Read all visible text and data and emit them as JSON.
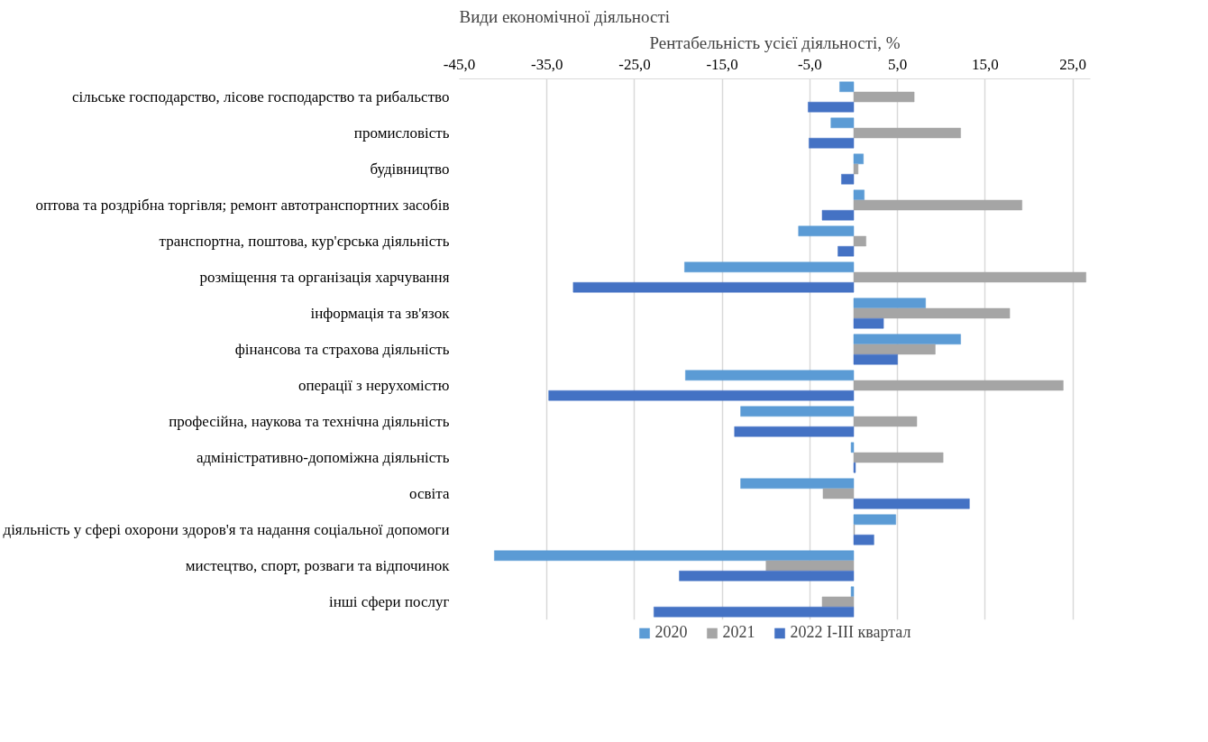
{
  "chart_data": {
    "type": "bar",
    "orientation": "horizontal",
    "xlabel": "Рентабельність усієї діяльності, %",
    "ylabel": "Види економічної діяльності",
    "categories": [
      "сільське господарство, лісове господарство та рибальство",
      "промисловість",
      "будівництво",
      "оптова та роздрібна торгівля; ремонт автотранспортних засобів",
      "транспортна, поштова, кур'єрська діяльність",
      "розміщення та організація харчування",
      "інформація та зв'язок",
      "фінансова та страхова діяльність",
      "операції з нерухомістю",
      "професійна, наукова та технічна діяльність",
      "адміністративно-допоміжна діяльність",
      "освіта",
      "діяльність у сфері охорони здоров'я та надання соціальної допомоги",
      "мистецтво, спорт, розваги та відпочинок",
      "інші сфери послуг"
    ],
    "series": [
      {
        "name": "2020",
        "color": "#5b9bd5",
        "values": [
          -1.6,
          -2.6,
          1.1,
          1.2,
          -6.3,
          -19.3,
          8.2,
          12.2,
          -19.2,
          -12.9,
          -0.3,
          -12.9,
          4.8,
          -41.0,
          -0.3
        ]
      },
      {
        "name": "2021",
        "color": "#a5a5a5",
        "values": [
          6.9,
          12.2,
          0.5,
          19.2,
          1.4,
          26.5,
          17.8,
          9.3,
          23.9,
          7.2,
          10.2,
          -3.5,
          0.1,
          -10.0,
          -3.6
        ]
      },
      {
        "name": "2022 І-ІІІ квартал",
        "color": "#4472c4",
        "values": [
          -5.2,
          -5.1,
          -1.4,
          -3.6,
          -1.8,
          -32.0,
          3.4,
          5.0,
          -34.8,
          -13.6,
          0.2,
          13.2,
          2.3,
          -19.9,
          -22.8
        ]
      }
    ],
    "xlim": [
      -45,
      27
    ],
    "xticks": [
      {
        "value": -45,
        "label": "-45,0"
      },
      {
        "value": -35,
        "label": "-35,0"
      },
      {
        "value": -25,
        "label": "-25,0"
      },
      {
        "value": -15,
        "label": "-15,0"
      },
      {
        "value": -5,
        "label": "-5,0"
      },
      {
        "value": 5,
        "label": "5,0"
      },
      {
        "value": 15,
        "label": "15,0"
      },
      {
        "value": 25,
        "label": "25,0"
      }
    ],
    "grid": "x",
    "legend": "bottom"
  }
}
